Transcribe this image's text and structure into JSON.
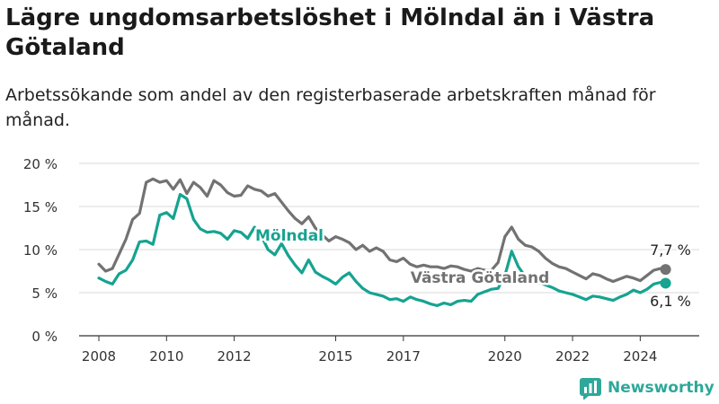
{
  "title": "Lägre ungdomsarbetslöshet i Mölndal än i Västra Götaland",
  "subtitle": "Arbetssökande som andel av den registerbaserade arbetskraften månad för månad.",
  "brand": "Newsworthy",
  "colors": {
    "molndal": "#16a391",
    "vastra": "#727272",
    "grid": "#d9d9d9",
    "brand": "#2ea89a"
  },
  "chart_data": {
    "type": "line",
    "x_tick_labels": [
      "2008",
      "2010",
      "2012",
      "2015",
      "2017",
      "2020",
      "2022",
      "2024"
    ],
    "x_tick_years": [
      2008,
      2010,
      2012,
      2015,
      2017,
      2020,
      2022,
      2024
    ],
    "xlim": [
      2008,
      2025
    ],
    "y_tick_labels": [
      "0 %",
      "5 %",
      "10 %",
      "15 %",
      "20 %"
    ],
    "y_tick_values": [
      0,
      5,
      10,
      15,
      20
    ],
    "ylim": [
      0,
      20
    ],
    "grid": true,
    "series": [
      {
        "name": "Västra Götaland",
        "key": "vastra",
        "x": [
          2008.0,
          2008.2,
          2008.4,
          2008.6,
          2008.8,
          2009.0,
          2009.2,
          2009.4,
          2009.6,
          2009.8,
          2010.0,
          2010.2,
          2010.4,
          2010.6,
          2010.8,
          2011.0,
          2011.2,
          2011.4,
          2011.6,
          2011.8,
          2012.0,
          2012.2,
          2012.4,
          2012.6,
          2012.8,
          2013.0,
          2013.2,
          2013.4,
          2013.6,
          2013.8,
          2014.0,
          2014.2,
          2014.4,
          2014.6,
          2014.8,
          2015.0,
          2015.2,
          2015.4,
          2015.6,
          2015.8,
          2016.0,
          2016.2,
          2016.4,
          2016.6,
          2016.8,
          2017.0,
          2017.2,
          2017.4,
          2017.6,
          2017.8,
          2018.0,
          2018.2,
          2018.4,
          2018.6,
          2018.8,
          2019.0,
          2019.2,
          2019.4,
          2019.6,
          2019.8,
          2020.0,
          2020.2,
          2020.4,
          2020.6,
          2020.8,
          2021.0,
          2021.2,
          2021.4,
          2021.6,
          2021.8,
          2022.0,
          2022.2,
          2022.4,
          2022.6,
          2022.8,
          2023.0,
          2023.2,
          2023.4,
          2023.6,
          2023.8,
          2024.0,
          2024.2,
          2024.4,
          2024.6,
          2024.75
        ],
        "values": [
          8.3,
          7.5,
          7.8,
          9.5,
          11.2,
          13.5,
          14.2,
          17.8,
          18.2,
          17.8,
          18.0,
          17.0,
          18.1,
          16.5,
          17.8,
          17.2,
          16.2,
          18.0,
          17.5,
          16.6,
          16.2,
          16.3,
          17.4,
          17.0,
          16.8,
          16.2,
          16.5,
          15.5,
          14.5,
          13.6,
          13.0,
          13.8,
          12.5,
          11.7,
          11.0,
          11.5,
          11.2,
          10.8,
          10.0,
          10.5,
          9.8,
          10.2,
          9.8,
          8.8,
          8.6,
          9.0,
          8.3,
          8.0,
          8.2,
          8.0,
          8.0,
          7.8,
          8.1,
          8.0,
          7.7,
          7.5,
          7.8,
          7.6,
          7.6,
          8.5,
          11.5,
          12.6,
          11.2,
          10.5,
          10.3,
          9.8,
          9.0,
          8.4,
          8.0,
          7.8,
          7.4,
          7.0,
          6.6,
          7.2,
          7.0,
          6.6,
          6.3,
          6.6,
          6.9,
          6.7,
          6.4,
          7.0,
          7.6,
          7.8,
          7.7
        ]
      },
      {
        "name": "Mölndal",
        "key": "molndal",
        "x": [
          2008.0,
          2008.2,
          2008.4,
          2008.6,
          2008.8,
          2009.0,
          2009.2,
          2009.4,
          2009.6,
          2009.8,
          2010.0,
          2010.2,
          2010.4,
          2010.6,
          2010.8,
          2011.0,
          2011.2,
          2011.4,
          2011.6,
          2011.8,
          2012.0,
          2012.2,
          2012.4,
          2012.6,
          2012.8,
          2013.0,
          2013.2,
          2013.4,
          2013.6,
          2013.8,
          2014.0,
          2014.2,
          2014.4,
          2014.6,
          2014.8,
          2015.0,
          2015.2,
          2015.4,
          2015.6,
          2015.8,
          2016.0,
          2016.2,
          2016.4,
          2016.6,
          2016.8,
          2017.0,
          2017.2,
          2017.4,
          2017.6,
          2017.8,
          2018.0,
          2018.2,
          2018.4,
          2018.6,
          2018.8,
          2019.0,
          2019.2,
          2019.4,
          2019.6,
          2019.8,
          2020.0,
          2020.2,
          2020.4,
          2020.6,
          2020.8,
          2021.0,
          2021.2,
          2021.4,
          2021.6,
          2021.8,
          2022.0,
          2022.2,
          2022.4,
          2022.6,
          2022.8,
          2023.0,
          2023.2,
          2023.4,
          2023.6,
          2023.8,
          2024.0,
          2024.2,
          2024.4,
          2024.6,
          2024.75
        ],
        "values": [
          6.7,
          6.3,
          6.0,
          7.2,
          7.6,
          8.8,
          10.9,
          11.0,
          10.6,
          14.0,
          14.3,
          13.6,
          16.4,
          15.9,
          13.5,
          12.4,
          12.0,
          12.1,
          11.9,
          11.2,
          12.2,
          12.0,
          11.3,
          12.6,
          11.6,
          10.0,
          9.4,
          10.7,
          9.3,
          8.2,
          7.3,
          8.8,
          7.4,
          6.9,
          6.5,
          6.0,
          6.8,
          7.3,
          6.3,
          5.5,
          5.0,
          4.8,
          4.6,
          4.2,
          4.3,
          4.0,
          4.5,
          4.2,
          4.0,
          3.7,
          3.5,
          3.8,
          3.6,
          4.0,
          4.1,
          4.0,
          4.8,
          5.1,
          5.4,
          5.5,
          7.0,
          9.8,
          8.0,
          6.9,
          6.5,
          6.2,
          5.9,
          5.6,
          5.2,
          5.0,
          4.8,
          4.5,
          4.2,
          4.6,
          4.5,
          4.3,
          4.1,
          4.5,
          4.8,
          5.3,
          5.0,
          5.4,
          6.0,
          6.2,
          6.1
        ]
      }
    ],
    "series_labels": [
      {
        "text": "Mölndal",
        "key": "molndal"
      },
      {
        "text": "Västra Götaland",
        "key": "vastra"
      }
    ],
    "end_labels": [
      {
        "text": "7,7 %",
        "key": "vastra"
      },
      {
        "text": "6,1 %",
        "key": "molndal"
      }
    ]
  }
}
